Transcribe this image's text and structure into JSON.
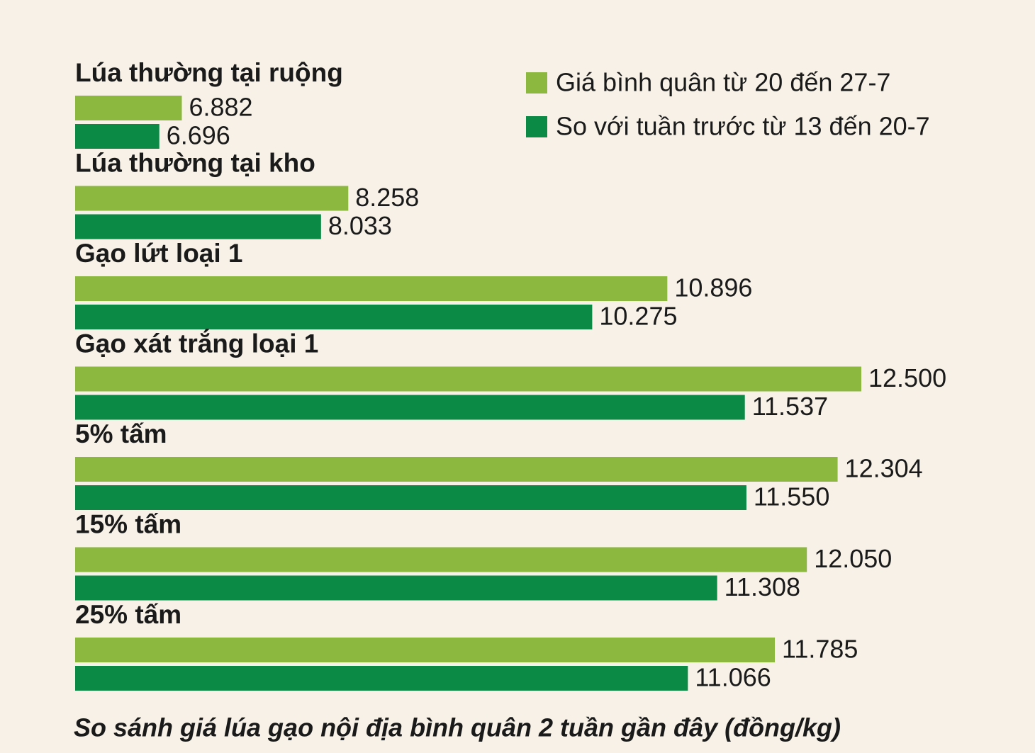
{
  "chart_data": {
    "type": "bar",
    "orientation": "horizontal",
    "title": "So sánh giá lúa gạo nội địa bình quân 2 tuần gần đây (đồng/kg)",
    "categories": [
      "Lúa thường tại ruộng",
      "Lúa thường tại kho",
      "Gạo lứt loại 1",
      "Gạo xát trắng loại 1",
      "5% tấm",
      "15% tấm",
      "25% tấm"
    ],
    "series": [
      {
        "name": "Giá bình quân từ 20 đến 27-7",
        "color": "#8db83f",
        "values": [
          6882,
          8258,
          10896,
          12500,
          12304,
          12050,
          11785
        ],
        "value_labels": [
          "6.882",
          "8.258",
          "10.896",
          "12.500",
          "12.304",
          "12.050",
          "11.785"
        ]
      },
      {
        "name": "So với tuần trước từ 13 đến 20-7",
        "color": "#0b8a46",
        "values": [
          6696,
          8033,
          10275,
          11537,
          11550,
          11308,
          11066
        ],
        "value_labels": [
          "6.696",
          "8.033",
          "10.275",
          "11.537",
          "11.550",
          "11.308",
          "11.066"
        ]
      }
    ],
    "xlim": [
      6000,
      12500
    ],
    "legend": "top-right"
  }
}
